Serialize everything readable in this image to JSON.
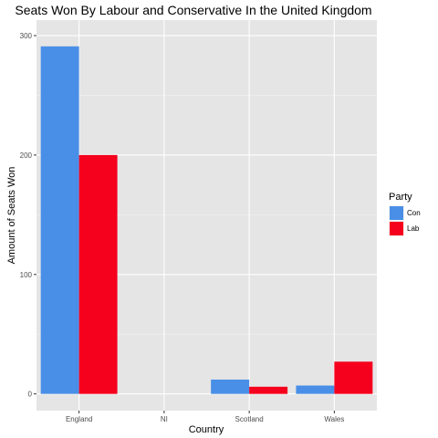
{
  "chart_data": {
    "type": "bar",
    "title": "Seats Won By Labour and Conservative In the United Kingdom",
    "xlabel": "Country",
    "ylabel": "Amount of Seats Won",
    "categories": [
      "England",
      "NI",
      "Scotland",
      "Wales"
    ],
    "series": [
      {
        "name": "Con",
        "values": [
          291,
          0,
          12,
          7
        ],
        "color": "#4a8fe7"
      },
      {
        "name": "Lab",
        "values": [
          200,
          0,
          6,
          27
        ],
        "color": "#f5001d"
      }
    ],
    "ylim": [
      -14,
      313
    ],
    "yticks": [
      0,
      100,
      200,
      300
    ],
    "grid": true,
    "legend": {
      "title": "Party",
      "position": "right"
    }
  }
}
